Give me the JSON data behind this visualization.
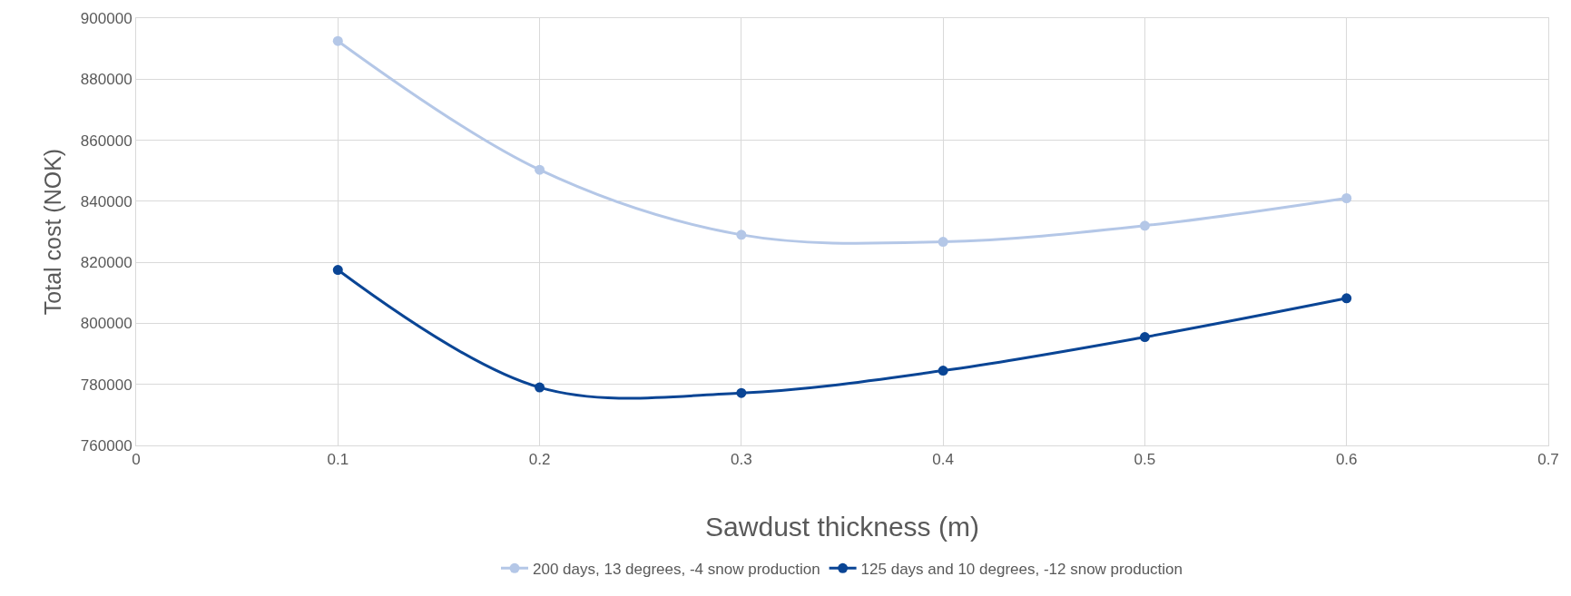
{
  "chart_data": {
    "type": "line",
    "xlabel": "Sawdust thickness (m)",
    "ylabel": "Total cost (NOK)",
    "x": [
      0.1,
      0.2,
      0.3,
      0.4,
      0.5,
      0.6
    ],
    "series": [
      {
        "name": "200 days, 13 degrees, -4 snow production",
        "color": "#b4c7e7",
        "values": [
          892500,
          850300,
          829000,
          826700,
          832000,
          841000
        ]
      },
      {
        "name": "125 days and 10 degrees, -12 snow production",
        "color": "#0a4595",
        "values": [
          817500,
          779000,
          777200,
          784500,
          795500,
          808200
        ]
      }
    ],
    "xlim": [
      0,
      0.7
    ],
    "xticks": [
      0,
      0.1,
      0.2,
      0.3,
      0.4,
      0.5,
      0.6,
      0.7
    ],
    "ylim": [
      760000,
      900000
    ],
    "yticks": [
      760000,
      780000,
      800000,
      820000,
      840000,
      860000,
      880000,
      900000
    ],
    "grid": true,
    "legend": "bottom",
    "marker": "circle",
    "line_style": "solid"
  }
}
